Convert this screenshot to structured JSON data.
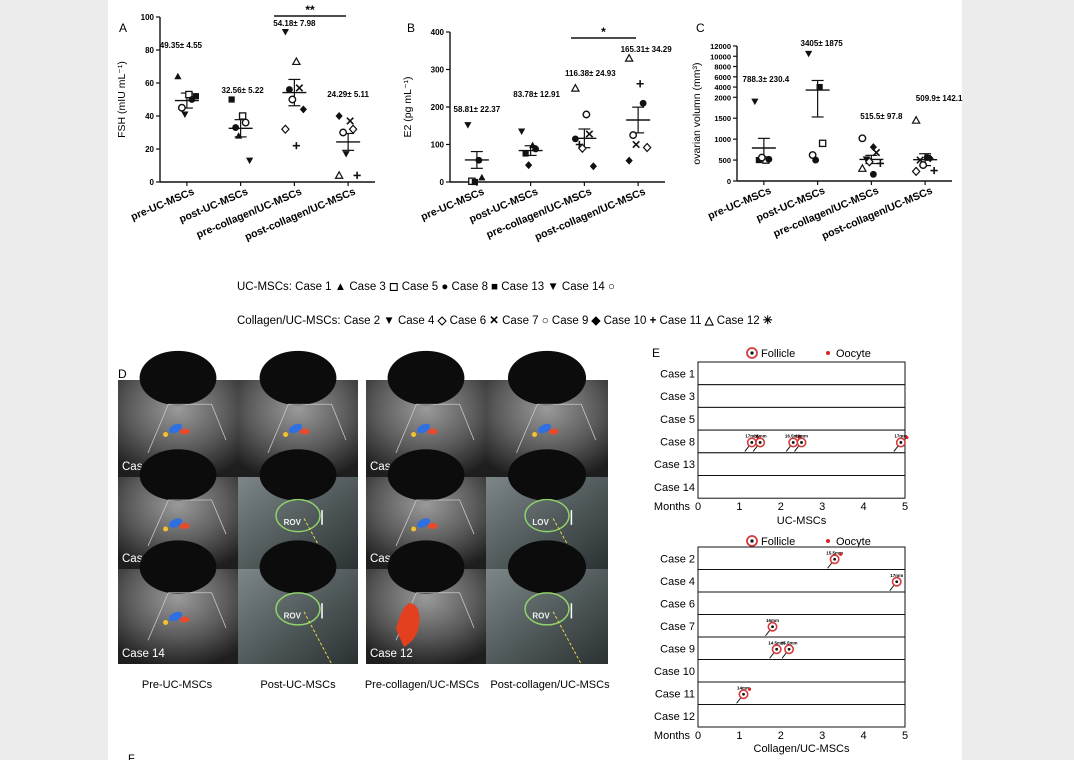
{
  "page": {
    "bottom_label": "F"
  },
  "chart_data": [
    {
      "panel": "A",
      "type": "scatter",
      "ylabel": "FSH (mIU mL⁻¹)",
      "ylim": [
        0,
        100
      ],
      "yticks": [
        "0",
        "20",
        "40",
        "60",
        "80",
        "100"
      ],
      "categories": [
        "pre-UC-MSCs",
        "post-UC-MSCs",
        "pre-collagen/UC-MSCs",
        "post-collagen/UC-MSCs"
      ],
      "mean_labels": [
        "49.35± 4.55",
        "32.56± 5.22",
        "54.18± 7.98",
        "24.29± 5.11"
      ],
      "means": [
        49.35,
        32.56,
        54.18,
        24.29
      ],
      "sems": [
        4.55,
        5.22,
        7.98,
        5.11
      ],
      "points": [
        [
          {
            "m": "tri",
            "y": 64
          },
          {
            "m": "sq",
            "y": 53
          },
          {
            "m": "dot",
            "y": 50
          },
          {
            "m": "circ",
            "y": 45
          },
          {
            "m": "ftri",
            "y": 41
          },
          {
            "m": "fsq",
            "y": 52
          }
        ],
        [
          {
            "m": "fsq",
            "y": 50
          },
          {
            "m": "sq",
            "y": 40
          },
          {
            "m": "circ",
            "y": 36
          },
          {
            "m": "dot",
            "y": 33
          },
          {
            "m": "tri",
            "y": 28
          },
          {
            "m": "ftri",
            "y": 13
          }
        ],
        [
          {
            "m": "ftri",
            "y": 91
          },
          {
            "m": "otri",
            "y": 73
          },
          {
            "m": "x",
            "y": 57
          },
          {
            "m": "dot",
            "y": 56
          },
          {
            "m": "circ",
            "y": 50
          },
          {
            "m": "fdia",
            "y": 44
          },
          {
            "m": "dia",
            "y": 32
          },
          {
            "m": "plus",
            "y": 22
          }
        ],
        [
          {
            "m": "fdia",
            "y": 40
          },
          {
            "m": "x",
            "y": 37
          },
          {
            "m": "dia",
            "y": 32
          },
          {
            "m": "circ",
            "y": 30
          },
          {
            "m": "ftri",
            "y": 17
          },
          {
            "m": "plus",
            "y": 4
          },
          {
            "m": "otri",
            "y": 4
          }
        ]
      ],
      "significance": "**"
    },
    {
      "panel": "B",
      "type": "scatter",
      "ylabel": "E2 (pg mL⁻¹)",
      "ylim": [
        0,
        400
      ],
      "yticks": [
        "0",
        "100",
        "200",
        "300",
        "400"
      ],
      "categories": [
        "pre-UC-MSCs",
        "post-UC-MSCs",
        "pre-collagen/UC-MSCs",
        "post-collagen/UC-MSCs"
      ],
      "mean_labels": [
        "58.81± 22.37",
        "83.78± 12.91",
        "116.38± 24.93",
        "165.31± 34.29"
      ],
      "means": [
        58.81,
        83.78,
        116.38,
        165.31
      ],
      "sems": [
        22.37,
        12.91,
        24.93,
        34.29
      ],
      "points": [
        [
          {
            "m": "ftri",
            "y": 152
          },
          {
            "m": "dot",
            "y": 58
          },
          {
            "m": "tri",
            "y": 12
          },
          {
            "m": "sq",
            "y": 2
          },
          {
            "m": "fsq",
            "y": 0
          }
        ],
        [
          {
            "m": "ftri",
            "y": 135
          },
          {
            "m": "tri",
            "y": 98
          },
          {
            "m": "dot",
            "y": 88
          },
          {
            "m": "fsq",
            "y": 76
          },
          {
            "m": "fdia",
            "y": 45
          }
        ],
        [
          {
            "m": "otri",
            "y": 250
          },
          {
            "m": "circ",
            "y": 180
          },
          {
            "m": "x",
            "y": 128
          },
          {
            "m": "plus",
            "y": 100
          },
          {
            "m": "dia",
            "y": 90
          },
          {
            "m": "fdia",
            "y": 42
          },
          {
            "m": "dot",
            "y": 115
          }
        ],
        [
          {
            "m": "otri",
            "y": 330
          },
          {
            "m": "plus",
            "y": 262
          },
          {
            "m": "dot",
            "y": 210
          },
          {
            "m": "circ",
            "y": 125
          },
          {
            "m": "x",
            "y": 100
          },
          {
            "m": "dia",
            "y": 92
          },
          {
            "m": "fdia",
            "y": 57
          }
        ]
      ],
      "significance": "*"
    },
    {
      "panel": "C",
      "type": "scatter",
      "ylabel": "ovarian volumn (mm³)",
      "ylim": [
        0,
        12000
      ],
      "yticks": [
        "0",
        "500",
        "1000",
        "1500",
        "2000",
        "4000",
        "6000",
        "8000",
        "10000",
        "12000"
      ],
      "categories": [
        "pre-UC-MSCs",
        "post-UC-MSCs",
        "pre-collagen/UC-MSCs",
        "post-collagen/UC-MSCs"
      ],
      "mean_labels": [
        "788.3± 230.4",
        "3405± 1875",
        "515.5± 97.8",
        "509.9± 142.1"
      ],
      "means": [
        788.3,
        3405,
        515.5,
        509.9
      ],
      "sems": [
        230.4,
        1875,
        97.8,
        142.1
      ],
      "points": [
        [
          {
            "m": "ftri",
            "y": 1900
          },
          {
            "m": "sq",
            "y": 500
          },
          {
            "m": "dot",
            "y": 520
          },
          {
            "m": "fsq",
            "y": 500
          },
          {
            "m": "circ",
            "y": 560
          }
        ],
        [
          {
            "m": "ftri",
            "y": 10500
          },
          {
            "m": "fsq",
            "y": 4000
          },
          {
            "m": "sq",
            "y": 900
          },
          {
            "m": "circ",
            "y": 620
          },
          {
            "m": "dot",
            "y": 500
          }
        ],
        [
          {
            "m": "circ",
            "y": 1020
          },
          {
            "m": "fdia",
            "y": 810
          },
          {
            "m": "x",
            "y": 680
          },
          {
            "m": "ftri",
            "y": 520
          },
          {
            "m": "dia",
            "y": 460
          },
          {
            "m": "plus",
            "y": 420
          },
          {
            "m": "otri",
            "y": 300
          },
          {
            "m": "dot",
            "y": 160
          }
        ],
        [
          {
            "m": "otri",
            "y": 1450
          },
          {
            "m": "dot",
            "y": 560
          },
          {
            "m": "fdia",
            "y": 540
          },
          {
            "m": "x",
            "y": 500
          },
          {
            "m": "circ",
            "y": 380
          },
          {
            "m": "plus",
            "y": 250
          },
          {
            "m": "dia",
            "y": 230
          }
        ]
      ]
    }
  ],
  "legend": {
    "uc_prefix": "UC-MSCs:",
    "uc_items": [
      {
        "label": "Case 1",
        "sym": "▲"
      },
      {
        "label": "Case 3",
        "sym": "◻"
      },
      {
        "label": "Case 5",
        "sym": "●"
      },
      {
        "label": "Case 8",
        "sym": "■"
      },
      {
        "label": "Case 13",
        "sym": "▼"
      },
      {
        "label": "Case 14",
        "sym": "○"
      }
    ],
    "col_prefix": "Collagen/UC-MSCs:",
    "col_items": [
      {
        "label": "Case 2",
        "sym": "▼"
      },
      {
        "label": "Case 4",
        "sym": "◇"
      },
      {
        "label": "Case 6",
        "sym": "✕"
      },
      {
        "label": "Case 7",
        "sym": "○"
      },
      {
        "label": "Case 9",
        "sym": "◆"
      },
      {
        "label": "Case 10",
        "sym": "+"
      },
      {
        "label": "Case 11",
        "sym": "△"
      },
      {
        "label": "Case 12",
        "sym": "✳"
      }
    ]
  },
  "panel_d": {
    "letter": "D",
    "case_labels": [
      "Case 5",
      "Case 4",
      "Case 8",
      "Case 7",
      "Case 14",
      "Case 12"
    ],
    "roi_labels": [
      "ROV",
      "LOV",
      "ROV",
      "ROV"
    ],
    "captions": [
      "Pre-UC-MSCs",
      "Post-UC-MSCs",
      "Pre-collagen/UC-MSCs",
      "Post-collagen/UC-MSCs"
    ]
  },
  "panel_e": {
    "letter": "E",
    "legend_follicle": "Follicle",
    "legend_oocyte": "Oocyte",
    "months_label": "Months",
    "ticks": [
      "0",
      "1",
      "2",
      "3",
      "4",
      "5"
    ],
    "uc": {
      "title": "UC-MSCs",
      "cases": [
        "Case 1",
        "Case 3",
        "Case 5",
        "Case 8",
        "Case 13",
        "Case 14"
      ],
      "events": [
        {
          "case": "Case 8",
          "month": 1.3,
          "size": "17mm",
          "oocyte": true
        },
        {
          "case": "Case 8",
          "month": 1.5,
          "size": "18mm",
          "oocyte": false
        },
        {
          "case": "Case 8",
          "month": 2.3,
          "size": "16.5mm",
          "oocyte": true
        },
        {
          "case": "Case 8",
          "month": 2.5,
          "size": "19mm",
          "oocyte": false
        },
        {
          "case": "Case 8",
          "month": 4.9,
          "size": "17mm",
          "oocyte": true
        }
      ]
    },
    "col": {
      "title": "Collagen/UC-MSCs",
      "cases": [
        "Case 2",
        "Case 4",
        "Case 6",
        "Case 7",
        "Case 9",
        "Case 10",
        "Case 11",
        "Case 12"
      ],
      "events": [
        {
          "case": "Case 2",
          "month": 3.3,
          "size": "15.5mm",
          "oocyte": true
        },
        {
          "case": "Case 4",
          "month": 4.8,
          "size": "17mm",
          "oocyte": false
        },
        {
          "case": "Case 7",
          "month": 1.8,
          "size": "16mm",
          "oocyte": false
        },
        {
          "case": "Case 9",
          "month": 1.9,
          "size": "14.5mm",
          "oocyte": false
        },
        {
          "case": "Case 9",
          "month": 2.2,
          "size": "15.5mm",
          "oocyte": false
        },
        {
          "case": "Case 11",
          "month": 1.1,
          "size": "14mm",
          "oocyte": true
        }
      ]
    }
  }
}
